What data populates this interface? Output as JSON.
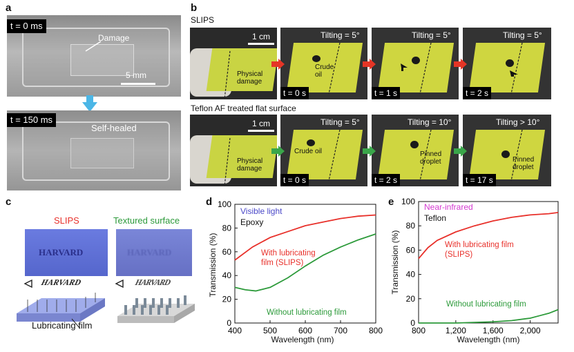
{
  "panel_a": {
    "letter": "a",
    "time_top": "t = 0 ms",
    "damage_label": "Damage",
    "scale_label": "5 mm",
    "time_bottom": "t = 150 ms",
    "healed_label": "Self-healed"
  },
  "panel_b": {
    "letter": "b",
    "row1_title": "SLIPS",
    "row2_title": "Teflon AF treated flat surface",
    "scale_label": "1 cm",
    "row1": {
      "physical_damage": "Physical damage",
      "crude_oil": "Crude oil",
      "tilts": [
        "Tilting = 5°",
        "Tilting = 5°",
        "Tilting = 5°"
      ],
      "times": [
        "t = 0 s",
        "t = 1 s",
        "t = 2 s"
      ]
    },
    "row2": {
      "physical_damage": "Physical damage",
      "crude_oil": "Crude oil",
      "tilts": [
        "Tilting = 5°",
        "Tilting = 10°",
        "Tilting > 10°"
      ],
      "times": [
        "t = 0 s",
        "t = 2 s",
        "t = 17 s"
      ],
      "pinned1": "Pinned droplet",
      "pinned2": "Pinned droplet"
    }
  },
  "panel_c": {
    "letter": "c",
    "slips_title": "SLIPS",
    "textured_title": "Textured surface",
    "harvard_text": "HARVARD",
    "lubricating_film": "Lubricating film",
    "colors": {
      "slips": "#e8302a",
      "textured": "#2c9a3a",
      "blue_panel": "#5b6fd6"
    }
  },
  "panel_d": {
    "letter": "d",
    "inset_title": "Visible light",
    "inset_material": "Epoxy",
    "ylabel": "Transmission (%)",
    "xlabel": "Wavelength (nm)",
    "label_with": "With lubricating film (SLIPS)",
    "label_without": "Without lubricating film"
  },
  "panel_e": {
    "letter": "e",
    "inset_title": "Near-infrared",
    "inset_material": "Teflon",
    "ylabel": "Transmission (%)",
    "xlabel": "Wavelength (nm)",
    "label_with": "With lubricating film (SLIPS)",
    "label_without": "Without lubricating film"
  },
  "chart_data": [
    {
      "type": "line",
      "panel": "d",
      "xlim": [
        400,
        800
      ],
      "ylim": [
        0,
        100
      ],
      "xticks": [
        "400",
        "500",
        "600",
        "700",
        "800"
      ],
      "yticks": [
        "0",
        "20",
        "40",
        "60",
        "80",
        "100"
      ],
      "series": [
        {
          "name": "With lubricating film (SLIPS)",
          "color": "#e8302a",
          "x": [
            400,
            450,
            500,
            550,
            600,
            650,
            700,
            750,
            800
          ],
          "y": [
            53,
            64,
            72,
            77,
            82,
            85,
            88,
            90,
            91
          ]
        },
        {
          "name": "Without lubricating film",
          "color": "#2c9a3a",
          "x": [
            400,
            430,
            460,
            500,
            550,
            600,
            650,
            700,
            750,
            800
          ],
          "y": [
            30,
            28,
            27,
            30,
            38,
            48,
            57,
            64,
            70,
            75
          ]
        }
      ]
    },
    {
      "type": "line",
      "panel": "e",
      "xlim": [
        800,
        2300
      ],
      "ylim": [
        0,
        100
      ],
      "xticks": [
        "800",
        "1,200",
        "1,600",
        "2,000"
      ],
      "yticks": [
        "0",
        "20",
        "40",
        "60",
        "80",
        "100"
      ],
      "series": [
        {
          "name": "With lubricating film (SLIPS)",
          "color": "#e8302a",
          "x": [
            800,
            900,
            1000,
            1200,
            1400,
            1600,
            1800,
            2000,
            2200,
            2300
          ],
          "y": [
            53,
            62,
            68,
            75,
            80,
            84,
            87,
            89,
            90,
            91
          ]
        },
        {
          "name": "Without lubricating film",
          "color": "#2c9a3a",
          "x": [
            800,
            1000,
            1200,
            1400,
            1600,
            1800,
            2000,
            2100,
            2200,
            2300
          ],
          "y": [
            0,
            0,
            0,
            0.5,
            1,
            2,
            4,
            6,
            8,
            11
          ]
        }
      ]
    }
  ]
}
